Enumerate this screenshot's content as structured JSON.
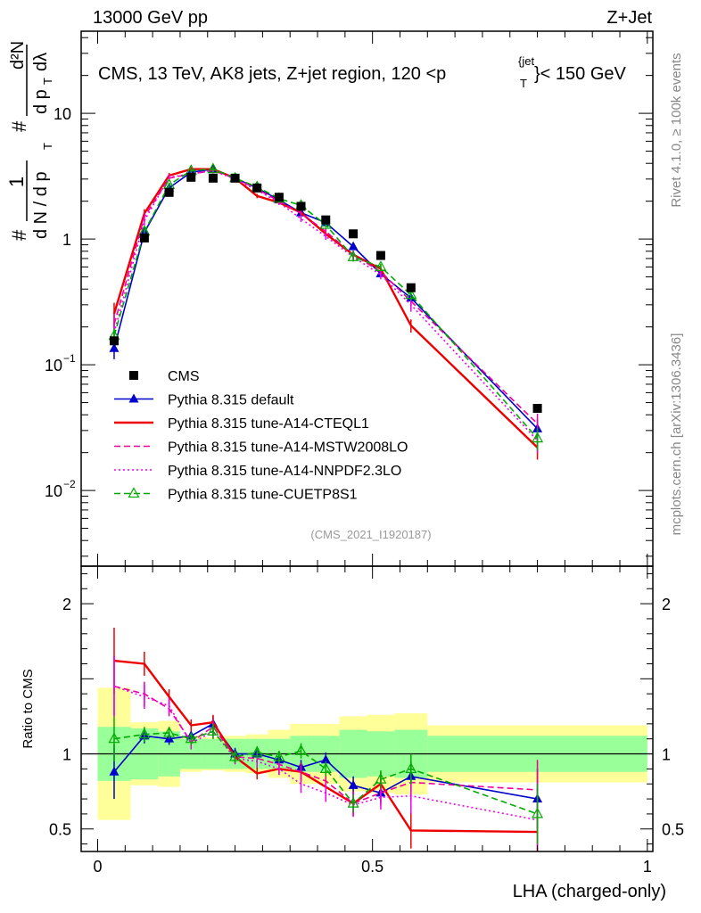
{
  "header": {
    "left": "13000 GeV pp",
    "right": "Z+Jet"
  },
  "side": {
    "rivet": "Rivet 4.1.0, ≥ 100k events",
    "mcplots": "mcplots.cern.ch [arXiv:1306.3436]"
  },
  "watermark": "(CMS_2021_I1920187)",
  "chart_data": {
    "type": "line",
    "title": "CMS, 13 TeV, AK8 jets, Z+jet region, 120 <p_T^{jet}< 150 GeV",
    "title_parts": {
      "main": "CMS, 13 TeV, AK8 jets, Z+jet region, 120 <p",
      "sup": "{jet",
      "sub": "T",
      "end": "}< 150 GeV"
    },
    "xlabel": "LHA (charged-only)",
    "ylabel": "1/dN/dp_T # d^2N/dp_T dλ",
    "ylabel_parts": {
      "hash": "#",
      "one": "1",
      "dn": "d N / d p",
      "t": "T",
      "hash2": "#",
      "d2n": "d²N",
      "dpt": "d p",
      "dlam": "dλ"
    },
    "ratio_ylabel": "Ratio to CMS",
    "xlim": [
      -0.03,
      1.01
    ],
    "ylim_log": [
      0.0025,
      45
    ],
    "ratio_ylim": [
      0.35,
      2.25
    ],
    "x_ticks": [
      0,
      0.5,
      1
    ],
    "x_tick_labels": [
      "0",
      "0.5",
      "1"
    ],
    "y_ticks": [
      0.01,
      0.1,
      1,
      10
    ],
    "y_tick_labels": [
      {
        "base": "10",
        "exp": "−2"
      },
      {
        "base": "10",
        "exp": "−1"
      },
      {
        "base": "1",
        "exp": ""
      },
      {
        "base": "10",
        "exp": ""
      }
    ],
    "ratio_ticks": [
      0.5,
      1,
      2
    ],
    "ratio_tick_labels": [
      "0.5",
      "1",
      "2"
    ],
    "x": [
      0.03,
      0.085,
      0.13,
      0.17,
      0.21,
      0.25,
      0.29,
      0.33,
      0.37,
      0.415,
      0.465,
      0.515,
      0.57,
      0.8
    ],
    "bin_edges": [
      0.0,
      0.06,
      0.11,
      0.15,
      0.19,
      0.23,
      0.27,
      0.31,
      0.35,
      0.39,
      0.44,
      0.49,
      0.54,
      0.6,
      1.0
    ],
    "data": {
      "name": "CMS",
      "values": [
        0.155,
        1.02,
        2.35,
        3.1,
        3.05,
        3.05,
        2.55,
        2.15,
        1.82,
        1.42,
        1.1,
        0.74,
        0.41,
        0.045
      ],
      "band_inner": [
        0.18,
        0.17,
        0.15,
        0.1,
        0.1,
        0.1,
        0.1,
        0.1,
        0.12,
        0.12,
        0.16,
        0.15,
        0.16,
        0.12
      ],
      "band_outer": [
        0.44,
        0.21,
        0.22,
        0.12,
        0.11,
        0.12,
        0.13,
        0.16,
        0.2,
        0.2,
        0.25,
        0.26,
        0.27,
        0.19
      ]
    },
    "series": [
      {
        "name": "Pythia 8.315 default",
        "color": "#0000cc",
        "style": "solid",
        "marker": "triangle-filled",
        "values": [
          0.135,
          1.13,
          2.55,
          3.4,
          3.6,
          3.05,
          2.55,
          2.05,
          1.62,
          1.35,
          0.87,
          0.53,
          0.34,
          0.031
        ],
        "ratio": [
          0.88,
          1.12,
          1.1,
          1.12,
          1.2,
          1.0,
          1.0,
          0.96,
          0.91,
          0.96,
          0.79,
          0.74,
          0.85,
          0.7
        ],
        "ratio_err": [
          0.18,
          0.05,
          0.04,
          0.04,
          0.05,
          0.04,
          0.04,
          0.04,
          0.05,
          0.05,
          0.06,
          0.06,
          0.1,
          0.2
        ]
      },
      {
        "name": "Pythia 8.315 tune-A14-CTEQL1",
        "color": "#ee0000",
        "style": "solid",
        "marker": "none",
        "values": [
          0.255,
          1.6,
          3.2,
          3.6,
          3.6,
          3.05,
          2.2,
          1.95,
          1.62,
          1.1,
          0.75,
          0.58,
          0.205,
          0.022
        ],
        "ratio": [
          1.62,
          1.6,
          1.38,
          1.19,
          1.21,
          0.98,
          0.87,
          0.9,
          0.88,
          0.78,
          0.67,
          0.8,
          0.49,
          0.48
        ],
        "ratio_err": [
          0.22,
          0.08,
          0.05,
          0.04,
          0.05,
          0.04,
          0.04,
          0.04,
          0.06,
          0.06,
          0.08,
          0.08,
          0.12,
          0.2
        ]
      },
      {
        "name": "Pythia 8.315 tune-A14-MSTW2008LO",
        "color": "#ee0099",
        "style": "dashed",
        "marker": "none",
        "values": [
          0.21,
          1.5,
          3.05,
          3.3,
          3.5,
          3.05,
          2.5,
          2.0,
          1.6,
          1.15,
          0.75,
          0.55,
          0.32,
          0.034
        ],
        "ratio": [
          1.45,
          1.4,
          1.3,
          1.08,
          1.18,
          0.98,
          0.97,
          0.93,
          0.88,
          0.82,
          0.67,
          0.74,
          0.81,
          0.76
        ],
        "ratio_err": [
          0.2,
          0.08,
          0.05,
          0.04,
          0.05,
          0.04,
          0.04,
          0.04,
          0.06,
          0.06,
          0.08,
          0.08,
          0.12,
          0.2
        ]
      },
      {
        "name": "Pythia 8.315 tune-A14-NNPDF2.3LO",
        "color": "#ee00ee",
        "style": "dotted",
        "marker": "none",
        "values": [
          0.18,
          1.4,
          3.1,
          3.3,
          3.5,
          3.0,
          2.45,
          1.95,
          1.45,
          1.05,
          0.72,
          0.52,
          0.3,
          0.025
        ],
        "ratio": [
          1.45,
          1.38,
          1.32,
          1.07,
          1.15,
          0.97,
          0.95,
          0.9,
          0.8,
          0.74,
          0.66,
          0.71,
          0.72,
          0.56
        ],
        "ratio_err": [
          0.2,
          0.08,
          0.05,
          0.04,
          0.05,
          0.04,
          0.04,
          0.04,
          0.06,
          0.06,
          0.08,
          0.08,
          0.12,
          0.2
        ]
      },
      {
        "name": "Pythia 8.315 tune-CUETP8S1",
        "color": "#00aa00",
        "style": "dashed",
        "marker": "triangle-open",
        "values": [
          0.17,
          1.15,
          2.7,
          3.5,
          3.6,
          3.05,
          2.6,
          2.1,
          1.85,
          1.3,
          0.72,
          0.6,
          0.36,
          0.026
        ],
        "ratio": [
          1.1,
          1.13,
          1.14,
          1.1,
          1.15,
          0.98,
          1.01,
          0.98,
          1.02,
          0.9,
          0.67,
          0.83,
          0.9,
          0.6
        ],
        "ratio_err": [
          0.15,
          0.05,
          0.04,
          0.04,
          0.05,
          0.04,
          0.04,
          0.04,
          0.05,
          0.05,
          0.06,
          0.06,
          0.1,
          0.2
        ]
      }
    ],
    "legend_position": "middle-left"
  }
}
